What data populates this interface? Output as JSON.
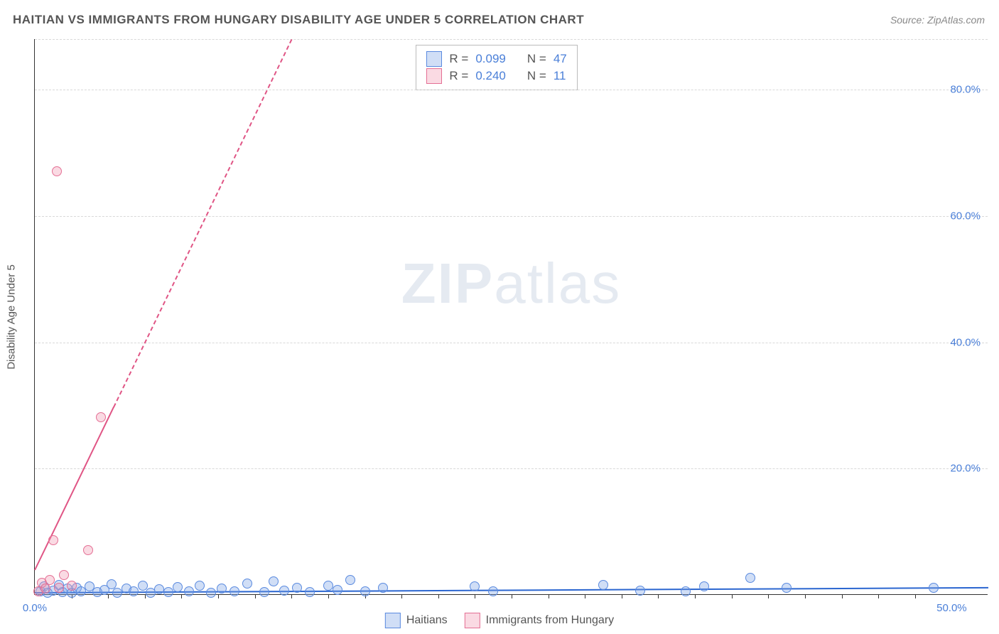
{
  "title": "HAITIAN VS IMMIGRANTS FROM HUNGARY DISABILITY AGE UNDER 5 CORRELATION CHART",
  "source": "Source: ZipAtlas.com",
  "y_axis_label": "Disability Age Under 5",
  "watermark_bold": "ZIP",
  "watermark_rest": "atlas",
  "chart": {
    "type": "scatter",
    "xlim": [
      0,
      52
    ],
    "ylim": [
      0,
      88
    ],
    "x_ticks": [
      0,
      50
    ],
    "x_tick_labels": [
      "0.0%",
      "50.0%"
    ],
    "y_ticks": [
      20,
      40,
      60,
      80
    ],
    "y_tick_labels": [
      "20.0%",
      "40.0%",
      "60.0%",
      "80.0%"
    ],
    "x_minor_ticks": [
      2,
      4,
      6,
      8,
      10,
      12,
      14,
      16,
      18,
      20,
      22,
      24,
      26,
      28,
      30,
      32,
      34,
      36,
      38,
      40,
      42,
      44,
      46,
      48
    ],
    "grid_color": "#d8d8d8",
    "background": "#ffffff",
    "marker_radius": 7,
    "marker_stroke_width": 1.5,
    "series": [
      {
        "id": "haitians",
        "label": "Haitians",
        "fill": "rgba(120,160,230,0.35)",
        "stroke": "#5a8adf",
        "R": "0.099",
        "N": "47",
        "trend": {
          "x1": 0,
          "y1": 0.5,
          "x2": 52,
          "y2": 1.3,
          "color": "#2b66d0",
          "dash": false,
          "width": 2
        },
        "points": [
          [
            0.3,
            0.4
          ],
          [
            0.5,
            1.2
          ],
          [
            0.7,
            0.2
          ],
          [
            1.0,
            0.6
          ],
          [
            1.3,
            1.5
          ],
          [
            1.5,
            0.3
          ],
          [
            1.8,
            0.9
          ],
          [
            2.0,
            0.2
          ],
          [
            2.3,
            1.0
          ],
          [
            2.5,
            0.4
          ],
          [
            3.0,
            1.2
          ],
          [
            3.4,
            0.3
          ],
          [
            3.8,
            0.7
          ],
          [
            4.2,
            1.6
          ],
          [
            4.5,
            0.2
          ],
          [
            5.0,
            0.9
          ],
          [
            5.4,
            0.4
          ],
          [
            5.9,
            1.3
          ],
          [
            6.3,
            0.2
          ],
          [
            6.8,
            0.8
          ],
          [
            7.3,
            0.3
          ],
          [
            7.8,
            1.1
          ],
          [
            8.4,
            0.5
          ],
          [
            9.0,
            1.4
          ],
          [
            9.6,
            0.2
          ],
          [
            10.2,
            0.9
          ],
          [
            10.9,
            0.4
          ],
          [
            11.6,
            1.7
          ],
          [
            12.5,
            0.3
          ],
          [
            13.0,
            2.0
          ],
          [
            13.6,
            0.6
          ],
          [
            14.3,
            1.0
          ],
          [
            15.0,
            0.3
          ],
          [
            16.0,
            1.4
          ],
          [
            16.5,
            0.7
          ],
          [
            17.2,
            2.3
          ],
          [
            18.0,
            0.4
          ],
          [
            19.0,
            1.0
          ],
          [
            24.0,
            1.2
          ],
          [
            25.0,
            0.4
          ],
          [
            31.0,
            1.5
          ],
          [
            33.0,
            0.6
          ],
          [
            35.5,
            0.4
          ],
          [
            36.5,
            1.2
          ],
          [
            39.0,
            2.6
          ],
          [
            41.0,
            1.0
          ],
          [
            49.0,
            1.0
          ]
        ]
      },
      {
        "id": "hungary",
        "label": "Immigrants from Hungary",
        "fill": "rgba(240,150,175,0.35)",
        "stroke": "#e46f94",
        "R": "0.240",
        "N": "11",
        "trend": {
          "x1": 0,
          "y1": 4,
          "x2": 14,
          "y2": 88,
          "color": "#e05585",
          "dash": true,
          "width": 2,
          "solid_until_x": 4.3
        },
        "points": [
          [
            0.2,
            0.5
          ],
          [
            0.4,
            1.8
          ],
          [
            0.6,
            0.9
          ],
          [
            0.8,
            2.2
          ],
          [
            1.0,
            8.5
          ],
          [
            1.3,
            1.0
          ],
          [
            1.6,
            3.0
          ],
          [
            2.0,
            1.3
          ],
          [
            2.9,
            7.0
          ],
          [
            3.6,
            28.0
          ],
          [
            1.2,
            67.0
          ]
        ]
      }
    ]
  },
  "legend_top": {
    "r_label": "R =",
    "n_label": "N ="
  },
  "legend_bottom": [
    "Haitians",
    "Immigrants from Hungary"
  ]
}
